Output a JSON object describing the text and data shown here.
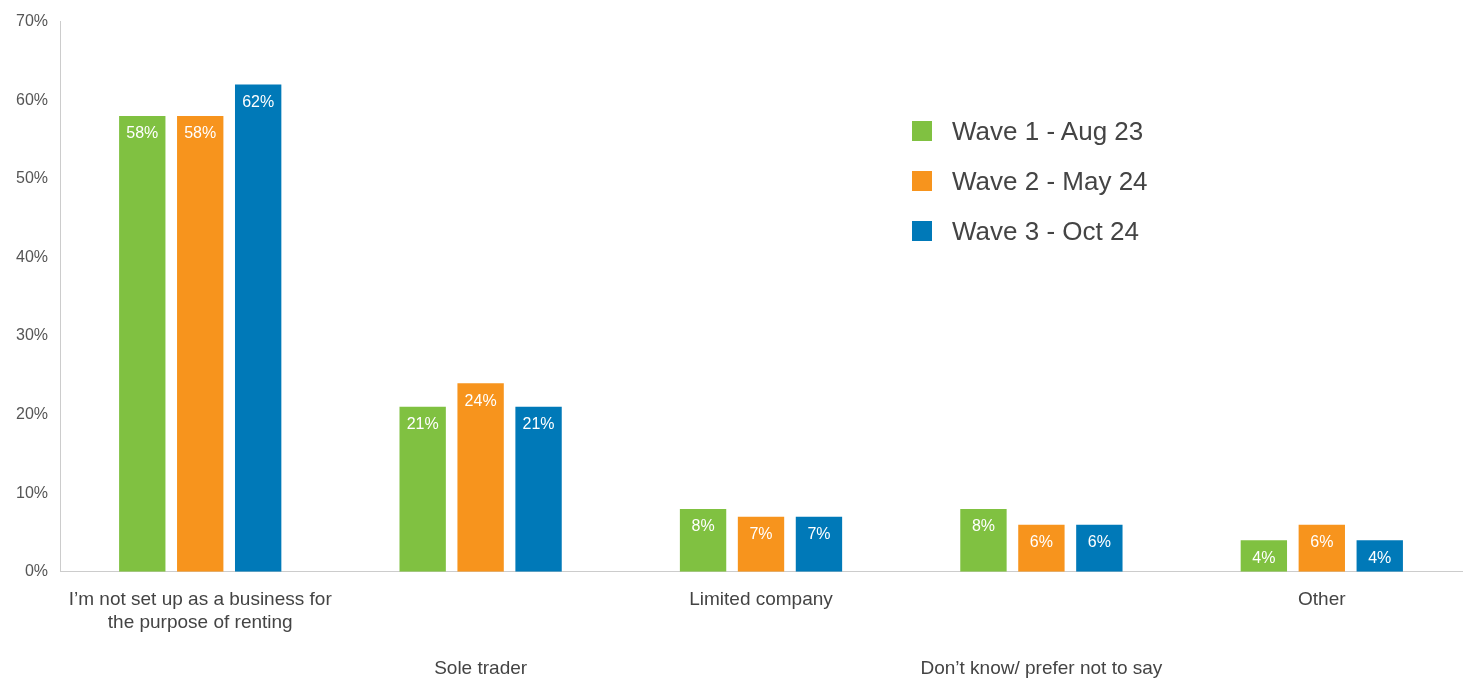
{
  "chart_data": {
    "type": "bar",
    "categories": [
      "I’m not set up as a business for the purpose of renting",
      "Sole trader",
      "Limited company",
      "Don’t know/ prefer not to say",
      "Other"
    ],
    "series": [
      {
        "name": "Wave 1 - Aug 23",
        "color": "#80c141",
        "values": [
          58,
          21,
          8,
          8,
          4
        ],
        "value_labels": [
          "58%",
          "21%",
          "8%",
          "8%",
          "4%"
        ]
      },
      {
        "name": "Wave 2 - May 24",
        "color": "#f7941d",
        "values": [
          58,
          24,
          7,
          6,
          6
        ],
        "value_labels": [
          "58%",
          "24%",
          "7%",
          "6%",
          "6%"
        ]
      },
      {
        "name": "Wave 3 - Oct 24",
        "color": "#0079b8",
        "values": [
          62,
          21,
          7,
          6,
          4
        ],
        "value_labels": [
          "62%",
          "21%",
          "7%",
          "6%",
          "4%"
        ]
      }
    ],
    "ylim": [
      0,
      70
    ],
    "yticks": [
      {
        "value": 0,
        "label": "0%"
      },
      {
        "value": 10,
        "label": "10%"
      },
      {
        "value": 20,
        "label": "20%"
      },
      {
        "value": 30,
        "label": "30%"
      },
      {
        "value": 40,
        "label": "40%"
      },
      {
        "value": 50,
        "label": "50%"
      },
      {
        "value": 60,
        "label": "60%"
      },
      {
        "value": 70,
        "label": "70%"
      }
    ],
    "grid": false,
    "legend": "top right"
  }
}
